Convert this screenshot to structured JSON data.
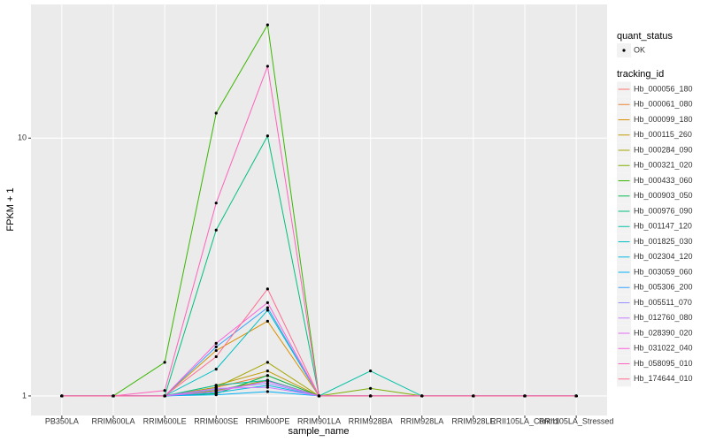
{
  "chart_data": {
    "type": "line",
    "x_label": "sample_name",
    "y_label": "FPKM + 1",
    "categories": [
      "PB350LA",
      "RRIM600LA",
      "RRIM600LE",
      "RRIM600SE",
      "RRIM600PE",
      "RRIM901LA",
      "RRIM928BA",
      "RRIM928LA",
      "RRIM928LE",
      "RRII105LA_Control",
      "RRII105LA_Stressed"
    ],
    "ylim": [
      0.84,
      33
    ],
    "yticks": [
      1,
      10
    ],
    "log_scale": true,
    "grid": true,
    "point_legend_title": "quant_status",
    "point_legend_label": "OK",
    "point_color": "#000000",
    "legend_title": "tracking_id",
    "legend_position": "right",
    "series": [
      {
        "name": "Hb_000056_180",
        "color": "#F8766D",
        "values": [
          1,
          1,
          1,
          1.05,
          1.15,
          1,
          1,
          1,
          1,
          1,
          1
        ]
      },
      {
        "name": "Hb_000061_080",
        "color": "#EA8331",
        "values": [
          1,
          1,
          1,
          1.08,
          1.2,
          1,
          1,
          1,
          1,
          1,
          1
        ]
      },
      {
        "name": "Hb_000099_180",
        "color": "#D89000",
        "values": [
          1,
          1,
          1,
          1.5,
          1.95,
          1,
          1,
          1,
          1,
          1,
          1
        ]
      },
      {
        "name": "Hb_000115_260",
        "color": "#C09B00",
        "values": [
          1,
          1,
          1,
          1.1,
          1.25,
          1,
          1,
          1,
          1,
          1,
          1
        ]
      },
      {
        "name": "Hb_000284_090",
        "color": "#A3A500",
        "values": [
          1,
          1,
          1,
          1.08,
          1.35,
          1,
          1,
          1,
          1,
          1,
          1
        ]
      },
      {
        "name": "Hb_000321_020",
        "color": "#7CAE00",
        "values": [
          1,
          1,
          1,
          1.05,
          1.15,
          1,
          1.07,
          1,
          1,
          1,
          1
        ]
      },
      {
        "name": "Hb_000433_060",
        "color": "#39B600",
        "values": [
          1,
          1,
          1.35,
          12.5,
          27.5,
          1,
          1,
          1,
          1,
          1,
          1
        ]
      },
      {
        "name": "Hb_000903_050",
        "color": "#00BB4E",
        "values": [
          1,
          1,
          1,
          1.02,
          1.2,
          1,
          1,
          1,
          1,
          1,
          1
        ]
      },
      {
        "name": "Hb_000976_090",
        "color": "#00BF7D",
        "values": [
          1,
          1,
          1,
          4.4,
          10.2,
          1,
          1,
          1,
          1,
          1,
          1
        ]
      },
      {
        "name": "Hb_001147_120",
        "color": "#00C1A3",
        "values": [
          1,
          1,
          1,
          1.1,
          1.15,
          1,
          1.25,
          1,
          1,
          1,
          1
        ]
      },
      {
        "name": "Hb_001825_030",
        "color": "#00BFC4",
        "values": [
          1,
          1,
          1,
          1.27,
          2.15,
          1,
          1,
          1,
          1,
          1,
          1
        ]
      },
      {
        "name": "Hb_002304_120",
        "color": "#00BAE0",
        "values": [
          1,
          1,
          1,
          1.03,
          1.1,
          1,
          1,
          1,
          1,
          1,
          1
        ]
      },
      {
        "name": "Hb_003059_060",
        "color": "#00B0F6",
        "values": [
          1,
          1,
          1,
          1.01,
          1.04,
          1,
          1,
          1,
          1,
          1,
          1
        ]
      },
      {
        "name": "Hb_005306_200",
        "color": "#35A2FF",
        "values": [
          1,
          1,
          1,
          1.55,
          2.2,
          1,
          1,
          1,
          1,
          1,
          1
        ]
      },
      {
        "name": "Hb_005511_070",
        "color": "#9590FF",
        "values": [
          1,
          1,
          1,
          1.06,
          1.12,
          1,
          1,
          1,
          1,
          1,
          1
        ]
      },
      {
        "name": "Hb_012760_080",
        "color": "#C77CFF",
        "values": [
          1,
          1,
          1,
          1.07,
          1.08,
          1,
          1,
          1,
          1,
          1,
          1
        ]
      },
      {
        "name": "Hb_028390_020",
        "color": "#E76BF3",
        "values": [
          1,
          1,
          1,
          1.04,
          1.14,
          1,
          1,
          1,
          1,
          1,
          1
        ]
      },
      {
        "name": "Hb_031022_040",
        "color": "#FA62DB",
        "values": [
          1,
          1,
          1,
          1.6,
          2.3,
          1,
          1,
          1,
          1,
          1,
          1
        ]
      },
      {
        "name": "Hb_058095_010",
        "color": "#FF62BC",
        "values": [
          1,
          1,
          1.05,
          5.6,
          19,
          1,
          1,
          1,
          1,
          1,
          1
        ]
      },
      {
        "name": "Hb_174644_010",
        "color": "#FF6C91",
        "values": [
          1,
          1,
          1,
          1.42,
          2.6,
          1,
          1,
          1,
          1,
          1,
          1
        ]
      }
    ]
  }
}
